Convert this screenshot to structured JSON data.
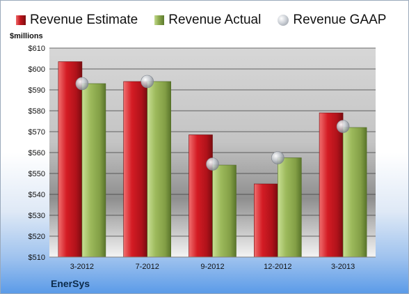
{
  "legend": {
    "estimate": "Revenue Estimate",
    "actual": "Revenue Actual",
    "gaap": "Revenue GAAP"
  },
  "company": "EnerSys",
  "colors": {
    "estimate": "#c0141c",
    "actual": "#8dab4f",
    "gaap": "#c9cdd3",
    "background": "#5b9be8"
  },
  "chart_data": {
    "type": "bar",
    "title": "",
    "xlabel": "",
    "ylabel": "$millions",
    "categories": [
      "3-2012",
      "7-2012",
      "9-2012",
      "12-2012",
      "3-2013"
    ],
    "series": [
      {
        "name": "Revenue Estimate",
        "values": [
          603.5,
          594,
          568.5,
          545,
          579
        ]
      },
      {
        "name": "Revenue Actual",
        "values": [
          593,
          594,
          554,
          557.5,
          572
        ]
      }
    ],
    "markers": {
      "name": "Revenue GAAP",
      "values": [
        593,
        594,
        554.5,
        557.5,
        572.5
      ]
    },
    "ylim": [
      510,
      610
    ],
    "yticks": [
      510,
      520,
      530,
      540,
      550,
      560,
      570,
      580,
      590,
      600,
      610
    ],
    "ytick_labels": [
      "$510",
      "$520",
      "$530",
      "$540",
      "$550",
      "$560",
      "$570",
      "$580",
      "$590",
      "$600",
      "$610"
    ],
    "grid": true,
    "legend_position": "top"
  }
}
